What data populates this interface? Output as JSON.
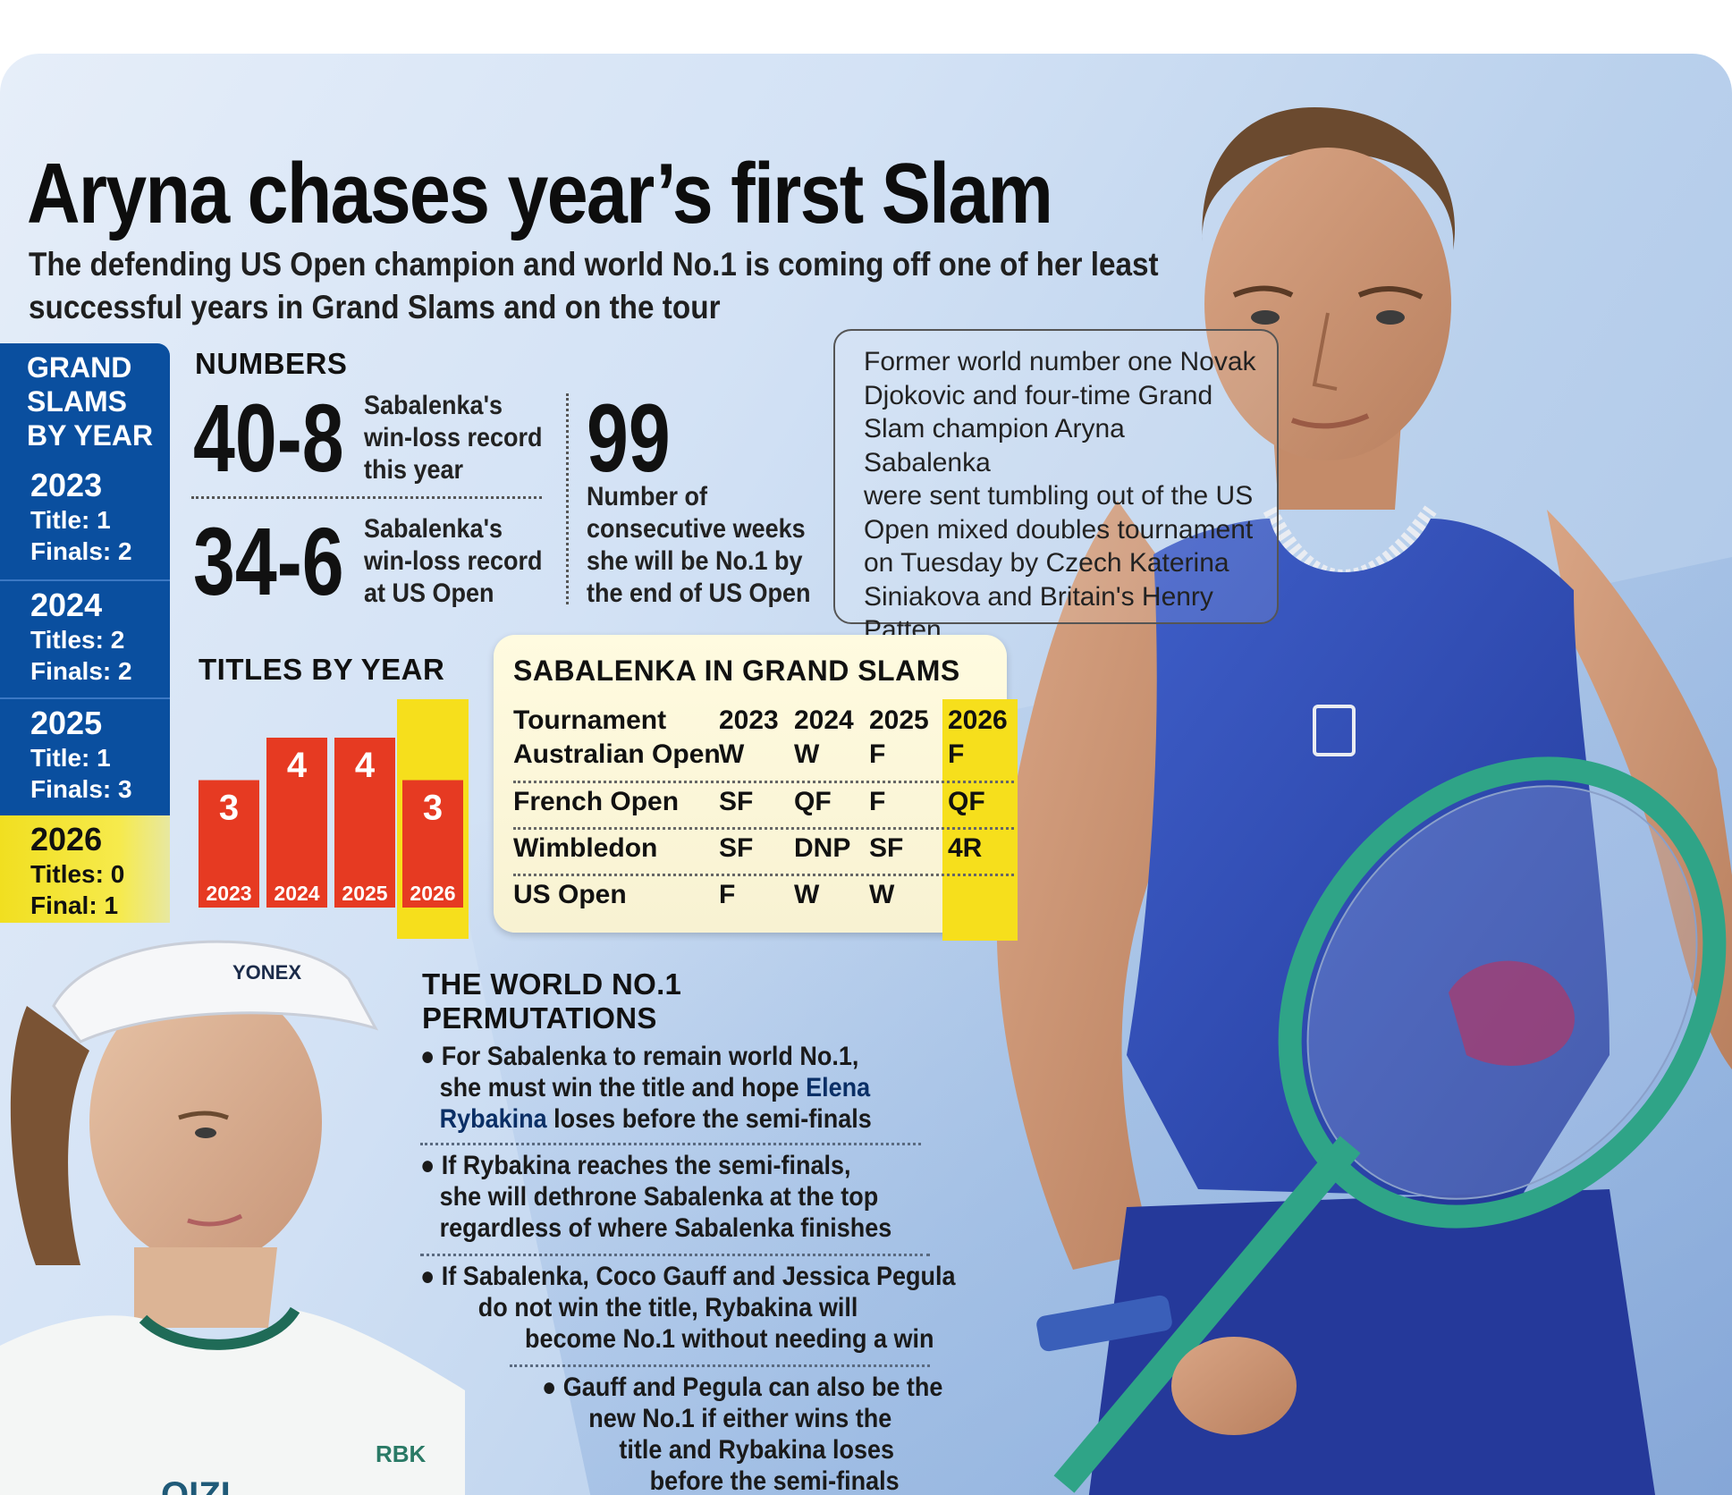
{
  "headline": "Aryna chases year’s first Slam",
  "subhead": "The defending US Open champion and world No.1 is coming off one of her least successful years in Grand Slams and on the tour",
  "grand_slams_by_year": {
    "title_lines": [
      "GRAND",
      "SLAMS",
      "BY YEAR"
    ],
    "years": [
      {
        "year": "2023",
        "titles": "Title: 1",
        "finals": "Finals: 2"
      },
      {
        "year": "2024",
        "titles": "Titles: 2",
        "finals": "Finals: 2"
      },
      {
        "year": "2025",
        "titles": "Title: 1",
        "finals": "Finals: 3"
      },
      {
        "year": "2026",
        "titles_label": "Titles:",
        "titles_value": "0",
        "finals_label": "Final:",
        "finals_value": "1"
      }
    ]
  },
  "numbers": {
    "label": "NUMBERS",
    "items": [
      {
        "value": "40-8",
        "text": [
          "Sabalenka's",
          "win-loss record",
          "this year"
        ]
      },
      {
        "value": "34-6",
        "text": [
          "Sabalenka's",
          "win-loss record",
          "at US Open"
        ]
      },
      {
        "value": "99",
        "text": [
          "Number of",
          "consecutive weeks",
          "she will be No.1 by",
          "the end of US Open"
        ]
      }
    ]
  },
  "quote_lines": [
    "Former world number one Novak",
    "Djokovic and four-time Grand",
    "Slam champion Aryna Sabalenka",
    "were sent tumbling out of the US",
    "Open mixed doubles tournament",
    "on Tuesday by Czech Katerina",
    "Siniakova and Britain's Henry",
    "Patten"
  ],
  "chart_data": {
    "type": "bar",
    "title": "TITLES BY YEAR",
    "categories": [
      "2023",
      "2024",
      "2025",
      "2026"
    ],
    "values": [
      3,
      4,
      4,
      3
    ],
    "highlight_category": "2026",
    "colors": {
      "bar": "#e63a22",
      "highlight_bg": "#f6df1c",
      "label": "#ffffff"
    }
  },
  "grand_slam_table": {
    "title": "SABALENKA IN GRAND SLAMS",
    "headers": [
      "Tournament",
      "2023",
      "2024",
      "2025",
      "2026"
    ],
    "rows": [
      [
        "Australian Open",
        "W",
        "W",
        "F",
        "F"
      ],
      [
        "French Open",
        "SF",
        "QF",
        "F",
        "QF"
      ],
      [
        "Wimbledon",
        "SF",
        "DNP",
        "SF",
        "4R"
      ],
      [
        "US Open",
        "F",
        "W",
        "W",
        ""
      ]
    ]
  },
  "permutations": {
    "title_lines": [
      "THE WORLD NO.1",
      "PERMUTATIONS"
    ],
    "bullets": [
      {
        "lines": [
          "● For Sabalenka to remain world No.1,",
          "she must win the title and hope "
        ],
        "bold": [
          "Elena",
          "Rybakina"
        ],
        "tail": " loses before the semi-finals"
      },
      {
        "lines": [
          "● If Rybakina reaches the semi-finals,",
          "she will dethrone Sabalenka at the top",
          "regardless of where Sabalenka finishes"
        ]
      },
      {
        "lines": [
          "● If Sabalenka, Coco Gauff and Jessica Pegula",
          "do not win the title, Rybakina will",
          "become No.1 without needing a win"
        ]
      },
      {
        "lines": [
          "● Gauff and Pegula can also be the",
          "new No.1 if either wins the",
          "title and Rybakina loses",
          "before the semi-finals"
        ]
      }
    ]
  },
  "photo_marks": {
    "shirt_logo": "OIZI",
    "shirt_badge": "RBK",
    "brand_mark": "YONEX"
  },
  "colors": {
    "blue_panel": "#0a4f9f",
    "yellow_highlight": "#f6df1c",
    "bar_red": "#e63a22",
    "top_blue": "#2f4fb8"
  }
}
